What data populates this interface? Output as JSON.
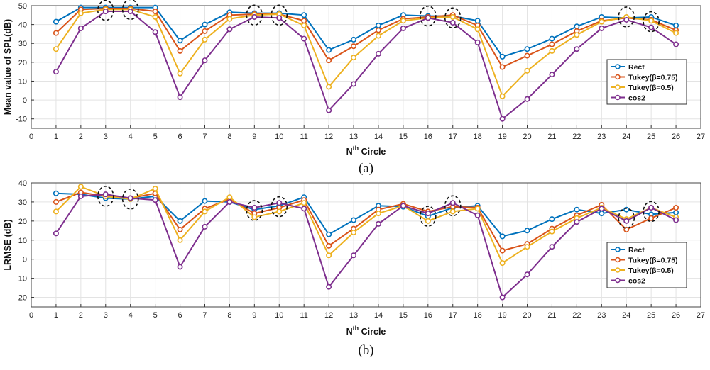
{
  "colors": {
    "rect": "#0072BD",
    "tukey75": "#D95319",
    "tukey5": "#EDB120",
    "cos2": "#7E2F8E"
  },
  "chart_data": [
    {
      "type": "line",
      "caption": "(a)",
      "ylabel": "Mean value of SPL(dB)",
      "xlabel": {
        "base": "N",
        "sup": "th",
        "rest": " Circle"
      },
      "xlim": [
        0,
        27
      ],
      "ylim": [
        -15,
        50
      ],
      "yticks": [
        -10,
        0,
        10,
        20,
        30,
        40,
        50
      ],
      "x": [
        1,
        2,
        3,
        4,
        5,
        6,
        7,
        8,
        9,
        10,
        11,
        12,
        13,
        14,
        15,
        16,
        17,
        18,
        19,
        20,
        21,
        22,
        23,
        24,
        25,
        26
      ],
      "grid": true,
      "legend_position": "right",
      "series": [
        {
          "name": "Rect",
          "values": [
            41.5,
            49,
            49,
            49,
            49,
            31.5,
            40,
            46.5,
            46,
            46,
            45,
            26.5,
            32,
            39.5,
            45,
            44.5,
            44.5,
            42,
            23,
            27,
            32.5,
            39,
            44,
            43.5,
            44,
            39.5
          ]
        },
        {
          "name": "Tukey(β=0.75)",
          "values": [
            35.5,
            48,
            48.5,
            48.5,
            47,
            26,
            36.5,
            45,
            45.5,
            45.5,
            42,
            21,
            28.5,
            37,
            43,
            44,
            45,
            39.5,
            17.5,
            23.5,
            29.5,
            36.5,
            42,
            43.5,
            42.5,
            37
          ]
        },
        {
          "name": "Tukey(β=0.5)",
          "values": [
            27,
            46,
            48,
            48,
            44,
            14,
            32,
            43,
            45,
            45.5,
            39.5,
            7,
            22.5,
            34,
            42,
            43.5,
            44,
            37.5,
            2,
            15.5,
            26,
            34.5,
            41.5,
            44,
            42,
            35.5
          ]
        },
        {
          "name": "cos2",
          "values": [
            15,
            38,
            47,
            47,
            36,
            1.5,
            21,
            37.5,
            44,
            43.5,
            32.5,
            -5.5,
            8.5,
            24.5,
            38,
            43.5,
            41,
            30.5,
            -10,
            0.5,
            13.5,
            27,
            38,
            42.5,
            38.5,
            29.5
          ]
        }
      ],
      "highlight_circles": [
        {
          "x": 3,
          "y": 47.5
        },
        {
          "x": 4,
          "y": 48
        },
        {
          "x": 9,
          "y": 45
        },
        {
          "x": 10,
          "y": 45
        },
        {
          "x": 16,
          "y": 44.5
        },
        {
          "x": 17,
          "y": 43.5
        },
        {
          "x": 24,
          "y": 44
        },
        {
          "x": 25,
          "y": 41.5
        }
      ]
    },
    {
      "type": "line",
      "caption": "(b)",
      "ylabel": "LRMSE (dB)",
      "xlabel": {
        "base": "N",
        "sup": "th",
        "rest": " Circle"
      },
      "xlim": [
        0,
        27
      ],
      "ylim": [
        -25,
        40
      ],
      "yticks": [
        -20,
        -10,
        0,
        10,
        20,
        30,
        40
      ],
      "x": [
        1,
        2,
        3,
        4,
        5,
        6,
        7,
        8,
        9,
        10,
        11,
        12,
        13,
        14,
        15,
        16,
        17,
        18,
        19,
        20,
        21,
        22,
        23,
        24,
        25,
        26
      ],
      "grid": true,
      "legend_position": "right",
      "series": [
        {
          "name": "Rect",
          "values": [
            34.5,
            34,
            32,
            31.5,
            33,
            20,
            30.5,
            30,
            26,
            28,
            32.5,
            13,
            20.5,
            28,
            27.5,
            22.5,
            27,
            28,
            12,
            15,
            21,
            26,
            24,
            26,
            23.5,
            24.5
          ]
        },
        {
          "name": "Tukey(β=0.75)",
          "values": [
            30,
            35,
            33,
            32,
            34.5,
            15.5,
            26.5,
            31.5,
            24,
            27,
            31,
            7,
            16,
            26,
            29,
            25,
            27.5,
            27,
            4.5,
            8,
            16,
            23,
            28.5,
            15.5,
            21.5,
            27
          ]
        },
        {
          "name": "Tukey(β=0.5)",
          "values": [
            25,
            38,
            33,
            31.5,
            37,
            10,
            25,
            32.5,
            22,
            25,
            29.5,
            2,
            14,
            24,
            28,
            20,
            25,
            26.5,
            -2,
            6.5,
            14.5,
            21.5,
            27,
            21,
            27,
            22
          ]
        },
        {
          "name": "cos2",
          "values": [
            13.5,
            33,
            34,
            32,
            31,
            -4,
            17,
            30,
            27,
            29.5,
            26.5,
            -14.5,
            2,
            18.5,
            28,
            24,
            29.5,
            23,
            -20,
            -8,
            6.5,
            19.5,
            26.5,
            20,
            27,
            20.5
          ]
        }
      ],
      "highlight_circles": [
        {
          "x": 3,
          "y": 33
        },
        {
          "x": 4,
          "y": 31.5
        },
        {
          "x": 9,
          "y": 25.5
        },
        {
          "x": 10,
          "y": 27.5
        },
        {
          "x": 16,
          "y": 22.5
        },
        {
          "x": 17,
          "y": 28
        },
        {
          "x": 24,
          "y": 21.5
        },
        {
          "x": 25,
          "y": 25
        }
      ]
    }
  ]
}
